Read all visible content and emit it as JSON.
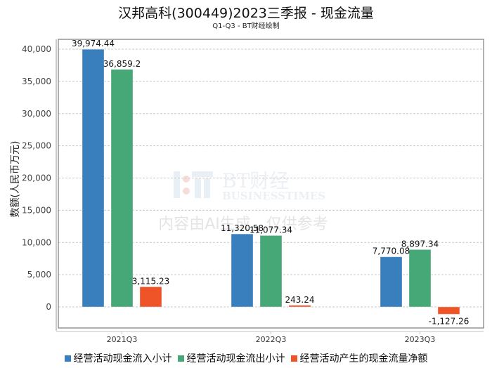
{
  "title": "汉邦高科(300449)2023三季报 - 现金流量",
  "subtitle": "Q1-Q3 - BT财经绘制",
  "watermark": {
    "logo_text": "BT财经",
    "logo_subtext": "BUSINESSTIMES",
    "notice": "内容由AI生成，仅供参考"
  },
  "chart_data": {
    "type": "bar",
    "title": "汉邦高科(300449)2023三季报 - 现金流量",
    "subtitle": "Q1-Q3 - BT财经绘制",
    "xlabel": "",
    "ylabel": "数额(人民币万元)",
    "ylim": [
      -3000,
      42500
    ],
    "yticks": [
      0,
      5000,
      10000,
      15000,
      20000,
      25000,
      30000,
      35000,
      40000
    ],
    "ytick_labels": [
      "0",
      "5,000",
      "10,000",
      "15,000",
      "20,000",
      "25,000",
      "30,000",
      "35,000",
      "40,000"
    ],
    "grid": true,
    "legend_position": "bottom",
    "categories": [
      "2021Q3",
      "2022Q3",
      "2023Q3"
    ],
    "series": [
      {
        "name": "经营活动现金流入小计",
        "color": "#3a7fbd",
        "values": [
          39974.44,
          11320.58,
          7770.08
        ],
        "labels": [
          "39,974.44",
          "11,320.58",
          "7,770.08"
        ]
      },
      {
        "name": "经营活动现金流出小计",
        "color": "#46a876",
        "values": [
          36859.2,
          11077.34,
          8897.34
        ],
        "labels": [
          "36,859.2",
          "11,077.34",
          "8,897.34"
        ]
      },
      {
        "name": "经营活动产生的现金流量净额",
        "color": "#ef5328",
        "values": [
          3115.23,
          243.24,
          -1127.26
        ],
        "labels": [
          "3,115.23",
          "243.24",
          "-1,127.26"
        ]
      }
    ]
  }
}
